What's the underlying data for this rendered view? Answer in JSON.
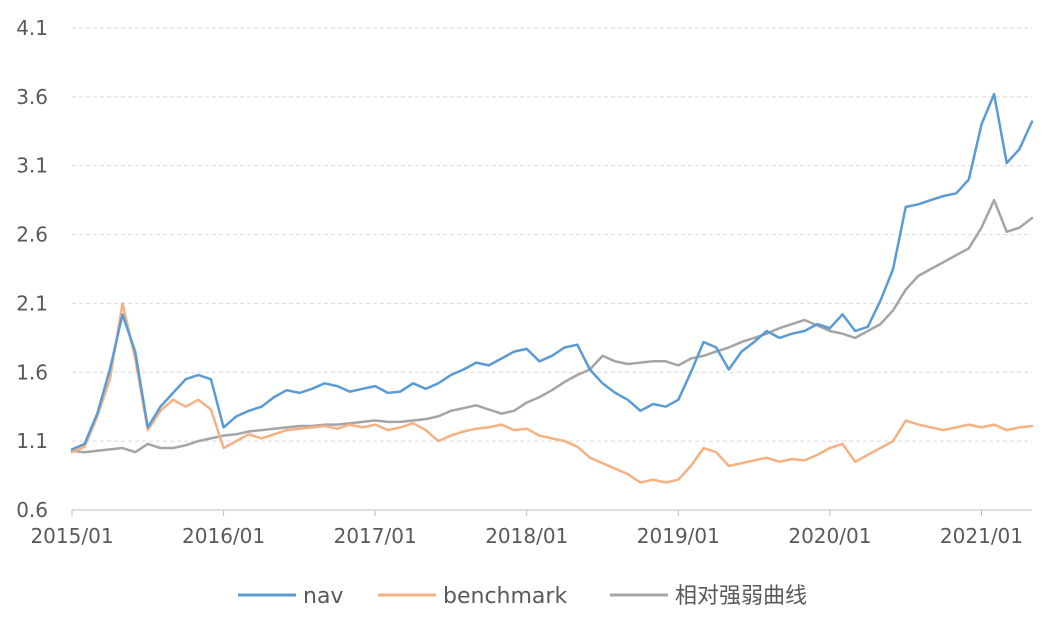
{
  "chart_data": {
    "type": "line",
    "ylim": [
      0.6,
      4.1
    ],
    "yticks": [
      "0.6",
      "1.1",
      "1.6",
      "2.1",
      "2.6",
      "3.1",
      "3.6",
      "4.1"
    ],
    "xlim": [
      "2015-01",
      "2021-05"
    ],
    "xticks": [
      {
        "label": "2015/01",
        "x": "2015-01"
      },
      {
        "label": "2016/01",
        "x": "2016-01"
      },
      {
        "label": "2017/01",
        "x": "2017-01"
      },
      {
        "label": "2018/01",
        "x": "2018-01"
      },
      {
        "label": "2019/01",
        "x": "2019-01"
      },
      {
        "label": "2020/01",
        "x": "2020-01"
      },
      {
        "label": "2021/01",
        "x": "2021-01"
      }
    ],
    "grid": "horizontal-dashed",
    "legend_position": "bottom",
    "x": [
      "2015-01",
      "2015-02",
      "2015-03",
      "2015-04",
      "2015-05",
      "2015-06",
      "2015-07",
      "2015-08",
      "2015-09",
      "2015-10",
      "2015-11",
      "2015-12",
      "2016-01",
      "2016-02",
      "2016-03",
      "2016-04",
      "2016-05",
      "2016-06",
      "2016-07",
      "2016-08",
      "2016-09",
      "2016-10",
      "2016-11",
      "2016-12",
      "2017-01",
      "2017-02",
      "2017-03",
      "2017-04",
      "2017-05",
      "2017-06",
      "2017-07",
      "2017-08",
      "2017-09",
      "2017-10",
      "2017-11",
      "2017-12",
      "2018-01",
      "2018-02",
      "2018-03",
      "2018-04",
      "2018-05",
      "2018-06",
      "2018-07",
      "2018-08",
      "2018-09",
      "2018-10",
      "2018-11",
      "2018-12",
      "2019-01",
      "2019-02",
      "2019-03",
      "2019-04",
      "2019-05",
      "2019-06",
      "2019-07",
      "2019-08",
      "2019-09",
      "2019-10",
      "2019-11",
      "2019-12",
      "2020-01",
      "2020-02",
      "2020-03",
      "2020-04",
      "2020-05",
      "2020-06",
      "2020-07",
      "2020-08",
      "2020-09",
      "2020-10",
      "2020-11",
      "2020-12",
      "2021-01",
      "2021-02",
      "2021-03",
      "2021-04",
      "2021-05"
    ],
    "series": [
      {
        "name": "nav",
        "color": "#5B9BD5",
        "values": [
          1.04,
          1.08,
          1.3,
          1.62,
          2.02,
          1.75,
          1.2,
          1.35,
          1.45,
          1.55,
          1.58,
          1.55,
          1.2,
          1.28,
          1.32,
          1.35,
          1.42,
          1.47,
          1.45,
          1.48,
          1.52,
          1.5,
          1.46,
          1.48,
          1.5,
          1.45,
          1.46,
          1.52,
          1.48,
          1.52,
          1.58,
          1.62,
          1.67,
          1.65,
          1.7,
          1.75,
          1.77,
          1.68,
          1.72,
          1.78,
          1.8,
          1.62,
          1.52,
          1.45,
          1.4,
          1.32,
          1.37,
          1.35,
          1.4,
          1.6,
          1.82,
          1.78,
          1.62,
          1.75,
          1.82,
          1.9,
          1.85,
          1.88,
          1.9,
          1.95,
          1.92,
          2.02,
          1.9,
          1.93,
          2.12,
          2.35,
          2.8,
          2.82,
          2.85,
          2.88,
          2.9,
          3.0,
          3.4,
          3.62,
          3.12,
          3.22,
          3.42
        ]
      },
      {
        "name": "benchmark",
        "color": "#F4B183",
        "values": [
          1.02,
          1.06,
          1.28,
          1.55,
          2.1,
          1.7,
          1.18,
          1.32,
          1.4,
          1.35,
          1.4,
          1.33,
          1.05,
          1.1,
          1.15,
          1.12,
          1.15,
          1.18,
          1.19,
          1.2,
          1.21,
          1.19,
          1.22,
          1.2,
          1.22,
          1.18,
          1.2,
          1.23,
          1.18,
          1.1,
          1.14,
          1.17,
          1.19,
          1.2,
          1.22,
          1.18,
          1.19,
          1.14,
          1.12,
          1.1,
          1.06,
          0.98,
          0.94,
          0.9,
          0.86,
          0.8,
          0.82,
          0.8,
          0.82,
          0.92,
          1.05,
          1.02,
          0.92,
          0.94,
          0.96,
          0.98,
          0.95,
          0.97,
          0.96,
          1.0,
          1.05,
          1.08,
          0.95,
          1.0,
          1.05,
          1.1,
          1.25,
          1.22,
          1.2,
          1.18,
          1.2,
          1.22,
          1.2,
          1.22,
          1.18,
          1.2,
          1.21
        ]
      },
      {
        "name": "相对强弱曲线",
        "color": "#A5A5A5",
        "values": [
          1.03,
          1.02,
          1.03,
          1.04,
          1.05,
          1.02,
          1.08,
          1.05,
          1.05,
          1.07,
          1.1,
          1.12,
          1.14,
          1.15,
          1.17,
          1.18,
          1.19,
          1.2,
          1.21,
          1.21,
          1.22,
          1.22,
          1.23,
          1.24,
          1.25,
          1.24,
          1.24,
          1.25,
          1.26,
          1.28,
          1.32,
          1.34,
          1.36,
          1.33,
          1.3,
          1.32,
          1.38,
          1.42,
          1.47,
          1.53,
          1.58,
          1.62,
          1.72,
          1.68,
          1.66,
          1.67,
          1.68,
          1.68,
          1.65,
          1.7,
          1.72,
          1.75,
          1.78,
          1.82,
          1.85,
          1.88,
          1.92,
          1.95,
          1.98,
          1.94,
          1.9,
          1.88,
          1.85,
          1.9,
          1.95,
          2.05,
          2.2,
          2.3,
          2.35,
          2.4,
          2.45,
          2.5,
          2.65,
          2.85,
          2.62,
          2.65,
          2.72
        ]
      }
    ]
  }
}
